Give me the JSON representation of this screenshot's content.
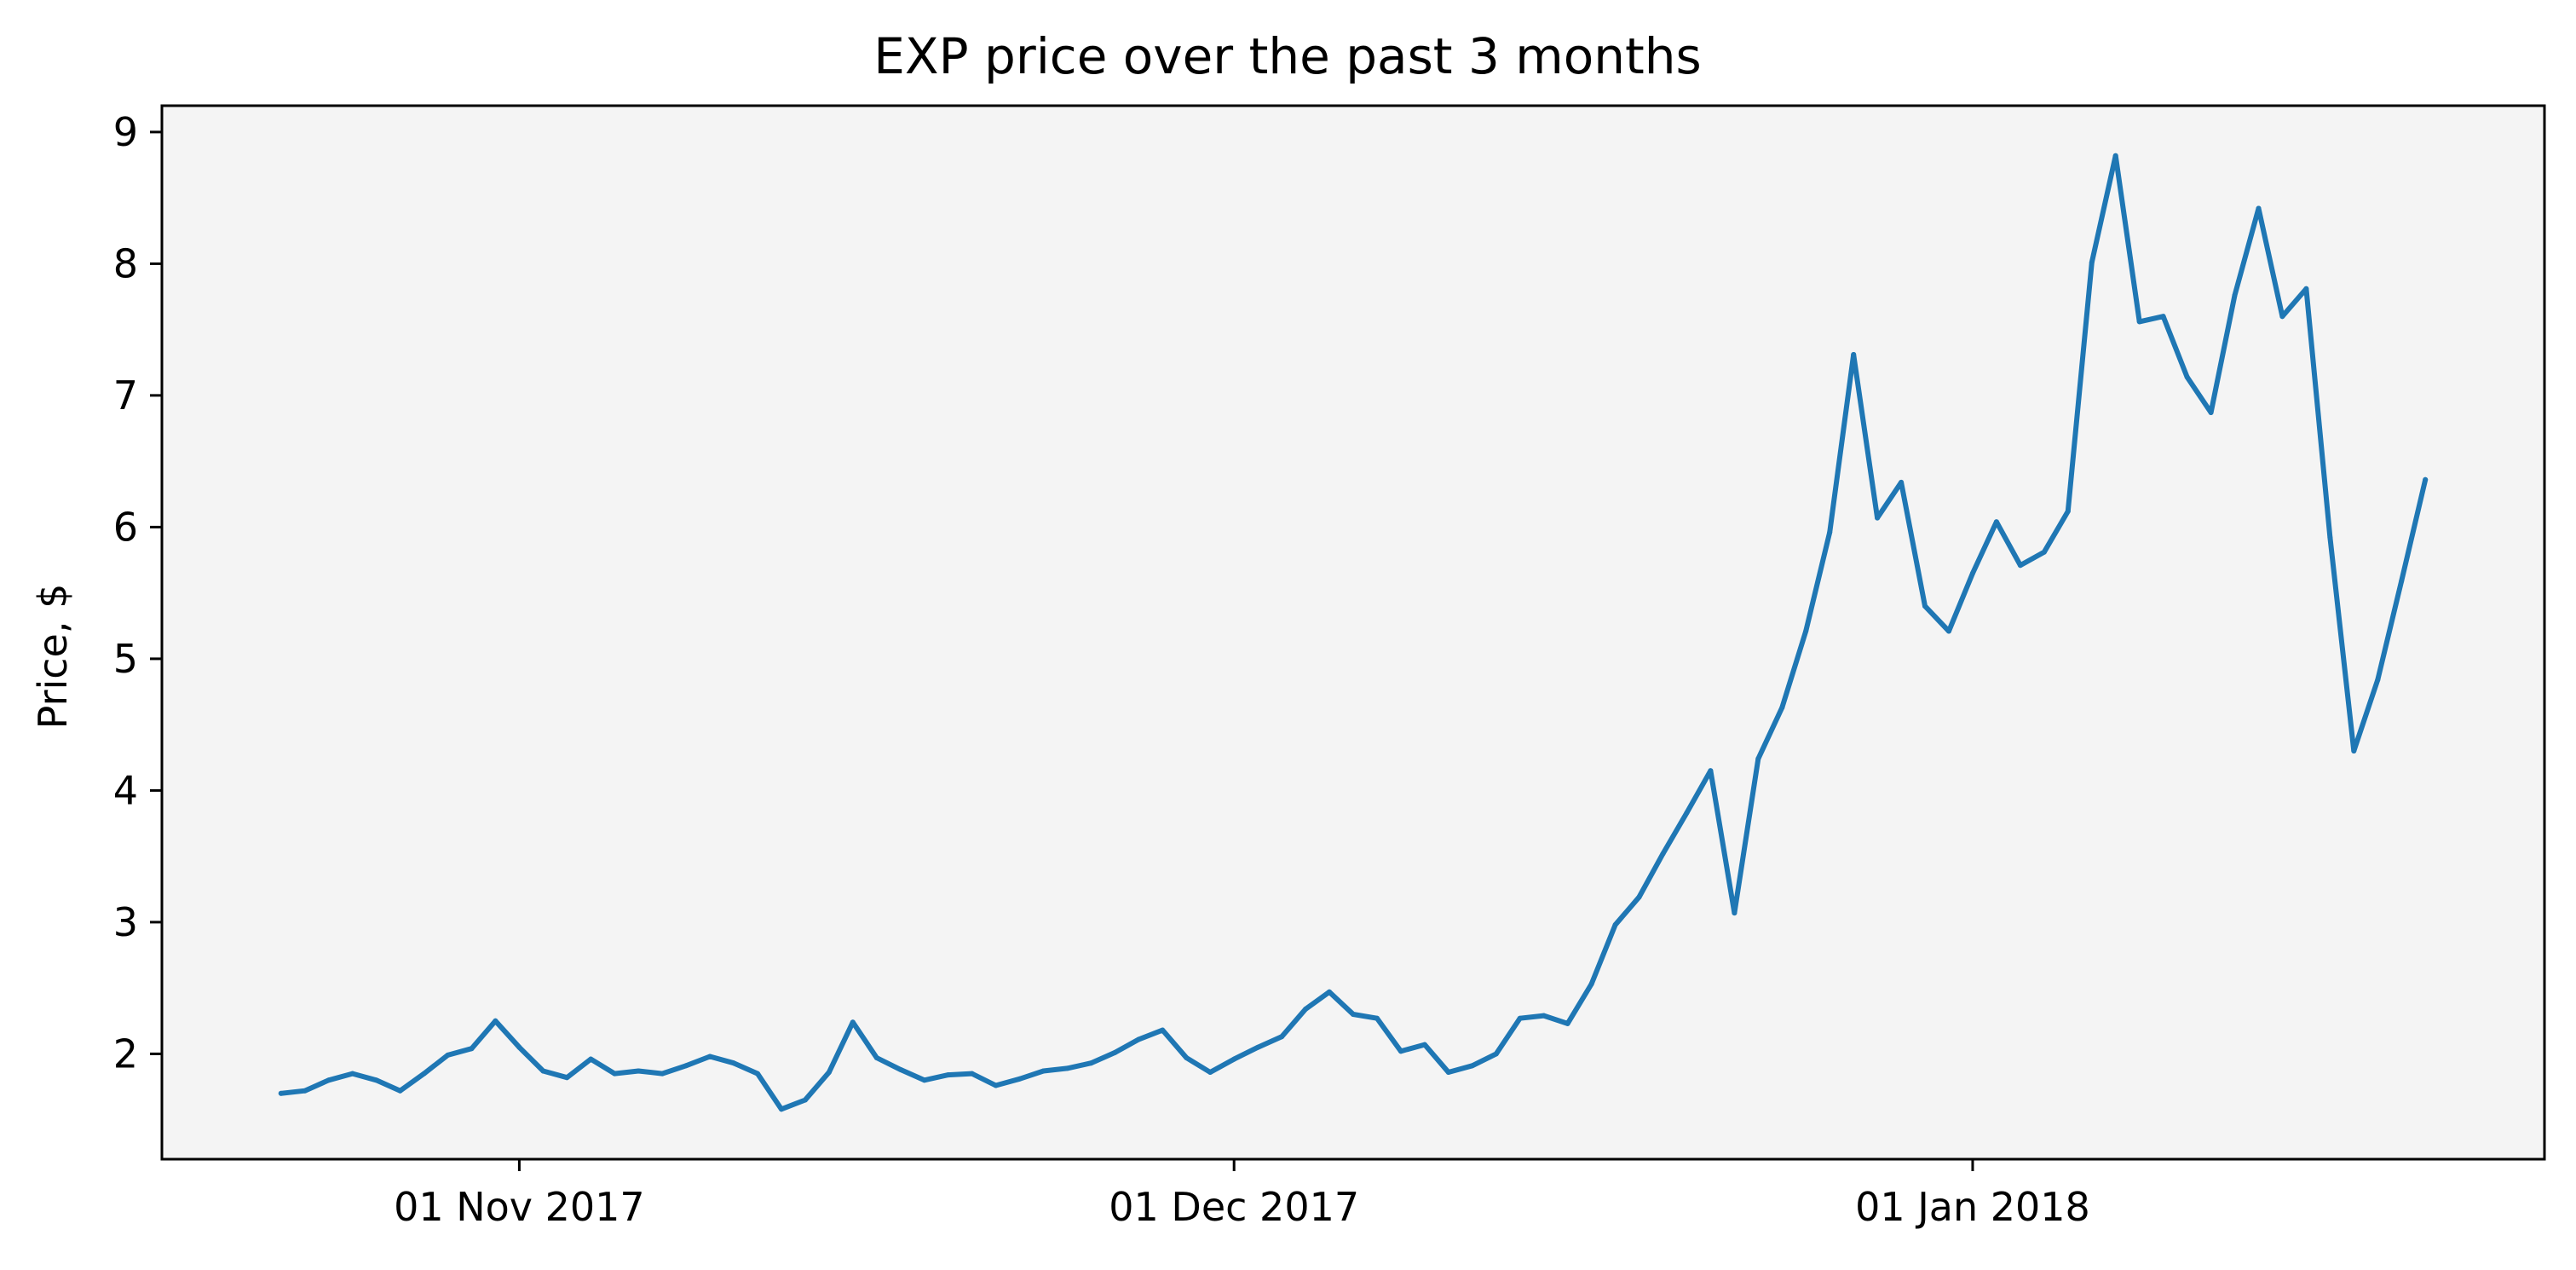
{
  "chart_data": {
    "type": "line",
    "title": "EXP price over the past 3 months",
    "xlabel": "",
    "ylabel": "Price, $",
    "x_start": "2017-10-22",
    "x_end": "2018-01-22",
    "xlim": [
      "2017-10-17",
      "2018-01-25"
    ],
    "ylim": [
      1.2,
      9.2
    ],
    "yticks": [
      2,
      3,
      4,
      5,
      6,
      7,
      8,
      9
    ],
    "xticks": [
      {
        "date": "2017-11-01",
        "label": "01 Nov 2017"
      },
      {
        "date": "2017-12-01",
        "label": "01 Dec 2017"
      },
      {
        "date": "2018-01-01",
        "label": "01 Jan 2018"
      }
    ],
    "grid": false,
    "background_color": "#f4f4f4",
    "series": [
      {
        "name": "",
        "color": "#1f77b4",
        "values": [
          1.7,
          1.72,
          1.8,
          1.85,
          1.8,
          1.72,
          1.85,
          1.99,
          2.04,
          2.25,
          2.05,
          1.87,
          1.82,
          1.96,
          1.85,
          1.87,
          1.85,
          1.91,
          1.98,
          1.93,
          1.85,
          1.58,
          1.65,
          1.86,
          2.24,
          1.97,
          1.88,
          1.8,
          1.84,
          1.85,
          1.76,
          1.81,
          1.87,
          1.89,
          1.93,
          2.01,
          2.11,
          2.18,
          1.97,
          1.86,
          1.96,
          2.05,
          2.13,
          2.34,
          2.47,
          2.3,
          2.27,
          2.02,
          2.07,
          1.86,
          1.91,
          2.0,
          2.27,
          2.29,
          2.23,
          2.53,
          2.98,
          3.19,
          3.52,
          3.83,
          4.15,
          3.07,
          4.24,
          4.63,
          5.21,
          5.96,
          7.31,
          6.07,
          6.34,
          5.4,
          5.21,
          5.65,
          6.04,
          5.71,
          5.81,
          6.12,
          8.01,
          8.82,
          7.56,
          7.6,
          7.14,
          6.87,
          7.76,
          8.42,
          7.6,
          7.81,
          5.92,
          4.3,
          4.84,
          5.59,
          6.36
        ]
      }
    ]
  }
}
